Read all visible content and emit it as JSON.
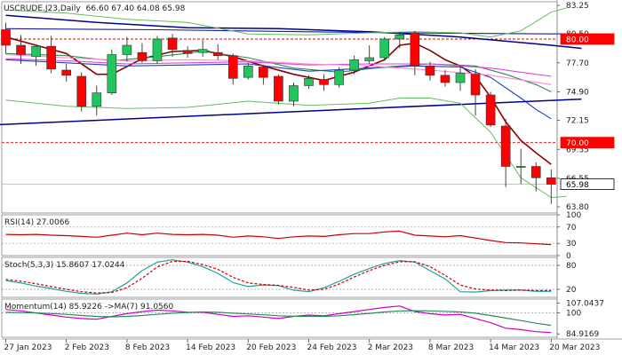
{
  "chart_data": {
    "type": "candlestick",
    "header": {
      "symbol": "USCRUDE.J23,Daily",
      "ohlc": "66.60 67.40 64.08 65.98"
    },
    "price_axis": {
      "ticks": [
        {
          "value": 83.25,
          "label": "83.25"
        },
        {
          "value": 80.5,
          "label": "80.50"
        },
        {
          "value": 77.7,
          "label": "77.70"
        },
        {
          "value": 74.9,
          "label": "74.90"
        },
        {
          "value": 72.15,
          "label": "72.15"
        },
        {
          "value": 69.35,
          "label": "69.35"
        },
        {
          "value": 66.55,
          "label": "66.55"
        },
        {
          "value": 63.8,
          "label": "63.80"
        }
      ],
      "ylim": [
        63.2,
        83.6
      ],
      "badges": [
        {
          "value": 80.0,
          "label": "80.00",
          "color": "#ff0000"
        },
        {
          "value": 70.0,
          "label": "70.00",
          "color": "#ff0000"
        },
        {
          "value": 65.98,
          "label": "65.98",
          "color": "#ffffff",
          "text_color": "#000000"
        }
      ]
    },
    "horizontal_levels": [
      {
        "value": 80.0,
        "color": "#e00000",
        "style": "dashed"
      },
      {
        "value": 70.0,
        "color": "#e00000",
        "style": "dashed"
      },
      {
        "value": 65.98,
        "color": "#bbbbbb",
        "style": "solid"
      }
    ],
    "x_labels": [
      {
        "index": 0,
        "label": "27 Jan 2023"
      },
      {
        "index": 4,
        "label": "2 Feb 2023"
      },
      {
        "index": 8,
        "label": "8 Feb 2023"
      },
      {
        "index": 12,
        "label": "14 Feb 2023"
      },
      {
        "index": 16,
        "label": "20 Feb 2023"
      },
      {
        "index": 20,
        "label": "24 Feb 2023"
      },
      {
        "index": 24,
        "label": "2 Mar 2023"
      },
      {
        "index": 28,
        "label": "8 Mar 2023"
      },
      {
        "index": 32,
        "label": "14 Mar 2023"
      },
      {
        "index": 36,
        "label": "20 Mar 2023"
      }
    ],
    "candles": [
      {
        "o": 80.9,
        "h": 81.6,
        "l": 78.6,
        "c": 79.4
      },
      {
        "o": 79.4,
        "h": 80.4,
        "l": 77.6,
        "c": 78.5
      },
      {
        "o": 78.3,
        "h": 79.4,
        "l": 77.4,
        "c": 79.3
      },
      {
        "o": 79.3,
        "h": 80.3,
        "l": 76.7,
        "c": 77.1
      },
      {
        "o": 77.0,
        "h": 77.6,
        "l": 75.9,
        "c": 76.5
      },
      {
        "o": 76.4,
        "h": 76.8,
        "l": 73.0,
        "c": 73.5
      },
      {
        "o": 73.5,
        "h": 75.5,
        "l": 72.6,
        "c": 74.8
      },
      {
        "o": 74.8,
        "h": 79.0,
        "l": 74.6,
        "c": 78.5
      },
      {
        "o": 78.5,
        "h": 80.2,
        "l": 77.8,
        "c": 79.4
      },
      {
        "o": 78.7,
        "h": 79.6,
        "l": 77.7,
        "c": 77.9
      },
      {
        "o": 77.9,
        "h": 80.3,
        "l": 77.6,
        "c": 80.0
      },
      {
        "o": 80.1,
        "h": 80.5,
        "l": 78.3,
        "c": 79.0
      },
      {
        "o": 78.9,
        "h": 79.3,
        "l": 78.2,
        "c": 78.6
      },
      {
        "o": 78.7,
        "h": 79.9,
        "l": 78.3,
        "c": 79.0
      },
      {
        "o": 78.7,
        "h": 79.5,
        "l": 78.0,
        "c": 78.4
      },
      {
        "o": 78.4,
        "h": 78.6,
        "l": 75.6,
        "c": 76.2
      },
      {
        "o": 76.3,
        "h": 77.7,
        "l": 76.1,
        "c": 77.4
      },
      {
        "o": 77.3,
        "h": 77.5,
        "l": 75.6,
        "c": 76.3
      },
      {
        "o": 76.4,
        "h": 76.6,
        "l": 73.7,
        "c": 74.0
      },
      {
        "o": 74.0,
        "h": 75.8,
        "l": 73.5,
        "c": 75.5
      },
      {
        "o": 75.5,
        "h": 76.5,
        "l": 75.2,
        "c": 76.2
      },
      {
        "o": 76.1,
        "h": 76.6,
        "l": 75.0,
        "c": 75.6
      },
      {
        "o": 75.6,
        "h": 77.3,
        "l": 75.3,
        "c": 77.0
      },
      {
        "o": 77.0,
        "h": 78.4,
        "l": 76.6,
        "c": 78.0
      },
      {
        "o": 77.9,
        "h": 79.4,
        "l": 77.6,
        "c": 78.2
      },
      {
        "o": 78.2,
        "h": 80.2,
        "l": 77.9,
        "c": 80.0
      },
      {
        "o": 80.0,
        "h": 80.7,
        "l": 79.1,
        "c": 80.4
      },
      {
        "o": 80.6,
        "h": 80.8,
        "l": 76.5,
        "c": 77.4
      },
      {
        "o": 77.4,
        "h": 77.8,
        "l": 76.0,
        "c": 76.5
      },
      {
        "o": 76.5,
        "h": 77.0,
        "l": 75.4,
        "c": 75.8
      },
      {
        "o": 75.8,
        "h": 77.4,
        "l": 75.0,
        "c": 76.7
      },
      {
        "o": 76.6,
        "h": 77.1,
        "l": 72.6,
        "c": 74.6
      },
      {
        "o": 74.6,
        "h": 74.9,
        "l": 71.5,
        "c": 71.7
      },
      {
        "o": 71.6,
        "h": 72.3,
        "l": 65.7,
        "c": 67.7
      },
      {
        "o": 67.6,
        "h": 69.4,
        "l": 66.0,
        "c": 67.7
      },
      {
        "o": 67.7,
        "h": 68.1,
        "l": 65.3,
        "c": 66.6
      },
      {
        "o": 66.6,
        "h": 67.4,
        "l": 64.08,
        "c": 65.98
      }
    ],
    "overlays": [
      {
        "color": "#8b0000",
        "width": 1.6,
        "points": [
          [
            0,
            80.2
          ],
          [
            2,
            79.4
          ],
          [
            4,
            78.6
          ],
          [
            6,
            76.6
          ],
          [
            7,
            76.6
          ],
          [
            9,
            78.1
          ],
          [
            11,
            78.8
          ],
          [
            13,
            78.9
          ],
          [
            15,
            78.3
          ],
          [
            17,
            77.4
          ],
          [
            19,
            76.6
          ],
          [
            21,
            76.0
          ],
          [
            23,
            76.8
          ],
          [
            25,
            78.0
          ],
          [
            26,
            79.4
          ],
          [
            27,
            79.6
          ],
          [
            28,
            78.9
          ],
          [
            29,
            78.0
          ],
          [
            30,
            77.4
          ],
          [
            31,
            76.4
          ],
          [
            32,
            74.4
          ],
          [
            33,
            72.0
          ],
          [
            34,
            70.2
          ],
          [
            35,
            69.0
          ],
          [
            36,
            67.9
          ]
        ]
      },
      {
        "color": "#2e8b57",
        "width": 1.1,
        "points": [
          [
            0,
            78.6
          ],
          [
            4,
            78.4
          ],
          [
            7,
            77.9
          ],
          [
            10,
            78.3
          ],
          [
            13,
            78.8
          ],
          [
            16,
            78.2
          ],
          [
            19,
            77.2
          ],
          [
            22,
            76.8
          ],
          [
            25,
            77.3
          ],
          [
            28,
            77.6
          ],
          [
            31,
            77.4
          ],
          [
            33,
            76.6
          ],
          [
            35,
            75.6
          ],
          [
            36,
            74.9
          ]
        ]
      },
      {
        "color": "#1e40c0",
        "width": 1.1,
        "points": [
          [
            0,
            78.0
          ],
          [
            4,
            77.7
          ],
          [
            8,
            77.4
          ],
          [
            12,
            77.5
          ],
          [
            16,
            77.6
          ],
          [
            20,
            76.9
          ],
          [
            24,
            77.2
          ],
          [
            27,
            77.4
          ],
          [
            30,
            77.3
          ],
          [
            32,
            76.3
          ],
          [
            34,
            74.3
          ],
          [
            35,
            73.2
          ],
          [
            36,
            72.3
          ]
        ]
      },
      {
        "color": "#dd44dd",
        "width": 1.1,
        "points": [
          [
            0,
            78.1
          ],
          [
            4,
            77.9
          ],
          [
            8,
            77.6
          ],
          [
            12,
            77.7
          ],
          [
            16,
            77.8
          ],
          [
            20,
            77.5
          ],
          [
            24,
            77.6
          ],
          [
            28,
            77.6
          ],
          [
            32,
            77.2
          ],
          [
            36,
            76.4
          ]
        ]
      },
      {
        "color": "#ff88cc",
        "width": 1.1,
        "points": [
          [
            0,
            78.5
          ],
          [
            4,
            78.2
          ],
          [
            8,
            77.9
          ],
          [
            12,
            78.0
          ],
          [
            16,
            77.9
          ],
          [
            20,
            77.6
          ],
          [
            24,
            77.4
          ],
          [
            28,
            77.0
          ],
          [
            32,
            76.5
          ],
          [
            36,
            75.6
          ]
        ]
      },
      {
        "color": "#00008b",
        "width": 1.5,
        "points": [
          [
            0,
            82.3
          ],
          [
            6,
            81.6
          ],
          [
            12,
            81.1
          ],
          [
            18,
            81.0
          ],
          [
            24,
            80.7
          ],
          [
            30,
            80.2
          ],
          [
            36,
            79.4
          ],
          [
            38,
            79.1
          ]
        ]
      },
      {
        "color": "#1a1aaa",
        "width": 1.1,
        "points": [
          [
            0,
            81.0
          ],
          [
            10,
            80.9
          ],
          [
            20,
            80.7
          ],
          [
            26,
            80.6
          ],
          [
            36,
            80.5
          ],
          [
            38,
            80.5
          ]
        ]
      },
      {
        "color": "#00008b",
        "width": 1.5,
        "points": [
          [
            -1,
            71.7
          ],
          [
            38,
            74.2
          ]
        ]
      },
      {
        "color": "#66bb66",
        "width": 1.0,
        "points": [
          [
            0,
            82.8
          ],
          [
            4,
            82.5
          ],
          [
            8,
            81.9
          ],
          [
            12,
            81.6
          ],
          [
            16,
            80.5
          ],
          [
            20,
            80.4
          ],
          [
            24,
            80.6
          ],
          [
            27,
            80.7
          ],
          [
            30,
            80.6
          ],
          [
            32,
            80.2
          ],
          [
            34,
            80.8
          ],
          [
            36,
            82.6
          ],
          [
            37,
            83.0
          ]
        ]
      },
      {
        "color": "#66bb66",
        "width": 1.0,
        "points": [
          [
            0,
            74.1
          ],
          [
            4,
            73.5
          ],
          [
            8,
            73.3
          ],
          [
            12,
            73.4
          ],
          [
            16,
            74.0
          ],
          [
            20,
            73.6
          ],
          [
            24,
            73.8
          ],
          [
            26,
            74.3
          ],
          [
            28,
            74.3
          ],
          [
            30,
            73.8
          ],
          [
            32,
            71.0
          ],
          [
            34,
            66.6
          ],
          [
            36,
            64.7
          ],
          [
            37,
            64.8
          ]
        ]
      }
    ],
    "indicators": [
      {
        "label": "RSI(14) 27.0066",
        "ylim": [
          0,
          100
        ],
        "ticks": [
          {
            "value": 100,
            "label": "100"
          },
          {
            "value": 70,
            "label": "70"
          },
          {
            "value": 30,
            "label": "30"
          },
          {
            "value": 0,
            "label": "0"
          }
        ],
        "levels": [
          70,
          30
        ],
        "series": [
          {
            "color": "#cc0000",
            "values": [
              52,
              51,
              52,
              50,
              49,
              47,
              45,
              50,
              55,
              51,
              55,
              52,
              51,
              52,
              50,
              45,
              48,
              46,
              42,
              46,
              48,
              47,
              51,
              54,
              54,
              58,
              60,
              50,
              48,
              46,
              49,
              43,
              37,
              32,
              31,
              29,
              27
            ]
          }
        ]
      },
      {
        "label": "Stoch(5,3,3) 15.8607 17.0244",
        "ylim": [
          0,
          100
        ],
        "ticks": [
          {
            "value": 80,
            "label": "80"
          },
          {
            "value": 20,
            "label": "20"
          }
        ],
        "levels": [
          80,
          20
        ],
        "series": [
          {
            "color": "#20a0a0",
            "values": [
              42,
              36,
              28,
              22,
              15,
              10,
              8,
              14,
              36,
              67,
              88,
              94,
              88,
              77,
              60,
              37,
              27,
              31,
              29,
              18,
              14,
              24,
              40,
              58,
              72,
              85,
              92,
              88,
              67,
              46,
              14,
              13,
              17,
              18,
              18,
              15,
              15
            ]
          },
          {
            "color": "#cc0000",
            "values": [
              45,
              40,
              34,
              27,
              20,
              14,
              11,
              12,
              24,
              48,
              76,
              90,
              90,
              82,
              70,
              50,
              36,
              32,
              30,
              25,
              18,
              20,
              33,
              51,
              67,
              80,
              89,
              89,
              77,
              55,
              31,
              21,
              18,
              17,
              18,
              17,
              17
            ],
            "dashed": true
          }
        ]
      },
      {
        "label": "Momentum(14) 85.9226 ->MA(7) 91.0560",
        "ylim": [
          82.5,
          110.0
        ],
        "ticks": [
          {
            "value": 107.0437,
            "label": "107.0437"
          },
          {
            "value": 100,
            "label": "100"
          },
          {
            "value": 84.9169,
            "label": "84.9169"
          }
        ],
        "levels": [
          100
        ],
        "series": [
          {
            "color": "#cc00cc",
            "values": [
              102.5,
              101.5,
              100.0,
              98.5,
              97.0,
              96.0,
              95.5,
              97.5,
              99.5,
              101.0,
              102.0,
              101.5,
              100.5,
              100.5,
              99.0,
              97.5,
              98.0,
              97.0,
              96.0,
              97.5,
              98.5,
              98.0,
              99.5,
              101.0,
              102.5,
              104.0,
              105.0,
              101.0,
              99.5,
              98.5,
              99.0,
              96.0,
              93.0,
              89.0,
              88.0,
              86.5,
              85.9
            ]
          },
          {
            "color": "#2e8b57",
            "values": [
              100.5,
              100.2,
              100.0,
              99.6,
              99.0,
              98.2,
              97.5,
              97.2,
              97.5,
              98.2,
              99.0,
              99.8,
              100.3,
              100.7,
              100.5,
              99.8,
              99.3,
              98.7,
              98.0,
              97.6,
              97.5,
              97.5,
              98.0,
              98.8,
              99.7,
              100.7,
              101.5,
              101.6,
              101.5,
              101.2,
              100.7,
              99.8,
              98.2,
              96.3,
              94.5,
              92.6,
              91.06
            ]
          }
        ]
      }
    ],
    "colors": {
      "bull": "#22c55e",
      "bear": "#ff0000",
      "axis_text": "#222222",
      "frame": "#888888"
    }
  }
}
